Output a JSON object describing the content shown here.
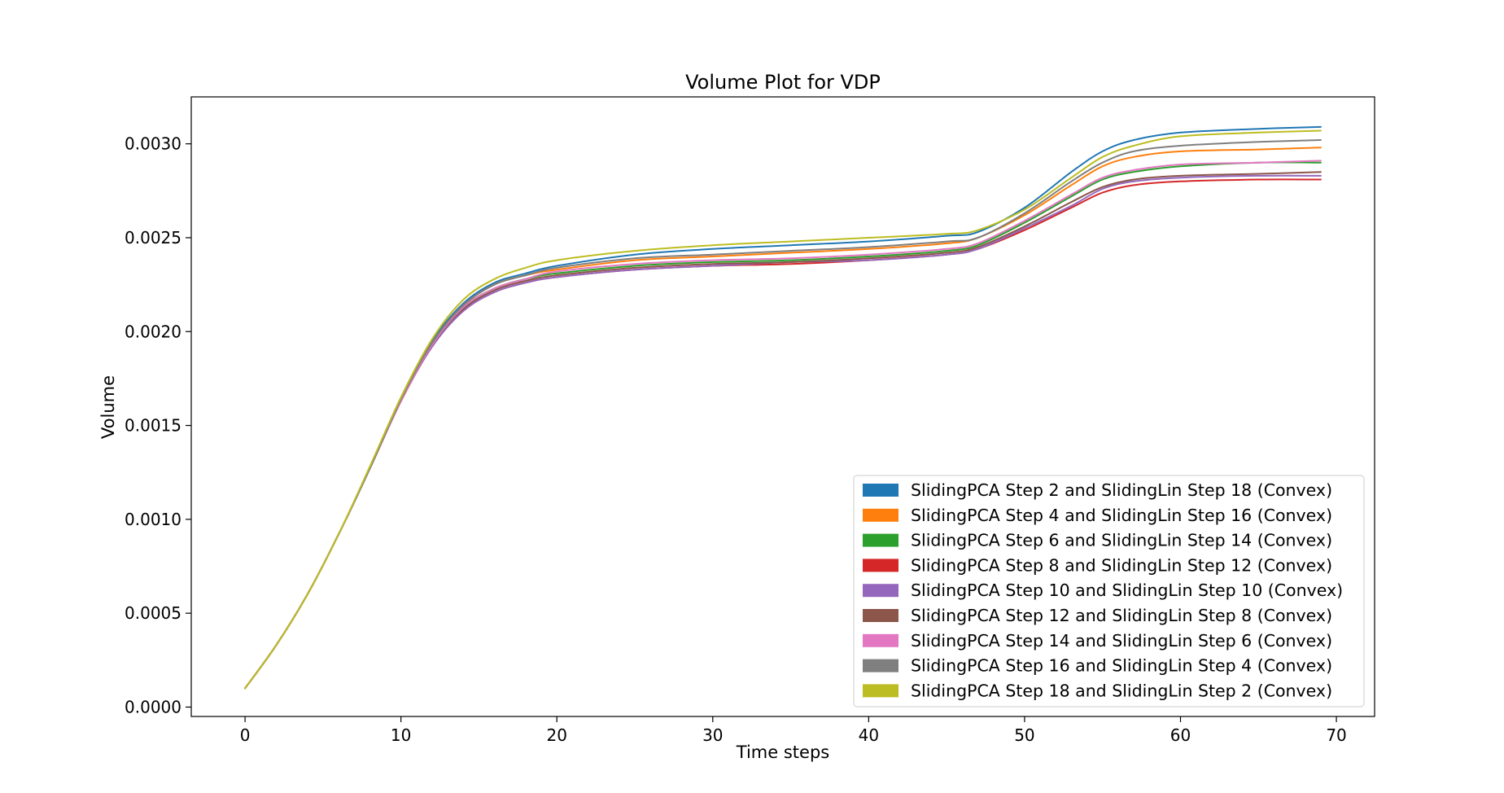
{
  "chart_data": {
    "type": "line",
    "title": "Volume Plot for VDP",
    "xlabel": "Time steps",
    "ylabel": "Volume",
    "xlim": [
      -3.45,
      72.45
    ],
    "ylim": [
      -5e-05,
      0.00325
    ],
    "xticks": [
      0,
      10,
      20,
      30,
      40,
      50,
      60,
      70
    ],
    "xtick_labels": [
      "0",
      "10",
      "20",
      "30",
      "40",
      "50",
      "60",
      "70"
    ],
    "yticks": [
      0.0,
      0.0005,
      0.001,
      0.0015,
      0.002,
      0.0025,
      0.003
    ],
    "ytick_labels": [
      "0.0000",
      "0.0005",
      "0.0010",
      "0.0015",
      "0.0020",
      "0.0025",
      "0.0030"
    ],
    "grid": false,
    "legend_position": "lower-right",
    "x": [
      0,
      2,
      4,
      6,
      8,
      10,
      12,
      14,
      16,
      18,
      20,
      25,
      30,
      35,
      40,
      45,
      47,
      50,
      53,
      55,
      57,
      60,
      65,
      69
    ],
    "series": [
      {
        "name": "SlidingPCA Step 2 and SlidingLin Step 18 (Convex)",
        "color": "#1f77b4",
        "values": [
          0.0001,
          0.00033,
          0.0006,
          0.00092,
          0.00127,
          0.00164,
          0.00195,
          0.00215,
          0.00226,
          0.00231,
          0.00235,
          0.00241,
          0.00244,
          0.00246,
          0.00248,
          0.00251,
          0.00253,
          0.00266,
          0.00285,
          0.00296,
          0.00302,
          0.00306,
          0.00308,
          0.00309
        ]
      },
      {
        "name": "SlidingPCA Step 4 and SlidingLin Step 16 (Convex)",
        "color": "#ff7f0e",
        "values": [
          0.0001,
          0.00033,
          0.0006,
          0.00092,
          0.00127,
          0.00164,
          0.00194,
          0.00214,
          0.00225,
          0.0023,
          0.00233,
          0.00238,
          0.0024,
          0.00242,
          0.00244,
          0.00247,
          0.0025,
          0.00262,
          0.00278,
          0.00288,
          0.00293,
          0.00296,
          0.00297,
          0.00298
        ]
      },
      {
        "name": "SlidingPCA Step 6 and SlidingLin Step 14 (Convex)",
        "color": "#2ca02c",
        "values": [
          0.0001,
          0.00033,
          0.0006,
          0.00092,
          0.00127,
          0.00163,
          0.00193,
          0.00213,
          0.00223,
          0.00228,
          0.00231,
          0.00235,
          0.00237,
          0.00238,
          0.0024,
          0.00243,
          0.00246,
          0.00258,
          0.00272,
          0.00281,
          0.00285,
          0.00288,
          0.0029,
          0.0029
        ]
      },
      {
        "name": "SlidingPCA Step 8 and SlidingLin Step 12 (Convex)",
        "color": "#d62728",
        "values": [
          0.0001,
          0.00033,
          0.0006,
          0.00092,
          0.00127,
          0.00163,
          0.00192,
          0.00211,
          0.00221,
          0.00226,
          0.00229,
          0.00233,
          0.00235,
          0.00236,
          0.00238,
          0.00241,
          0.00244,
          0.00254,
          0.00266,
          0.00274,
          0.00278,
          0.0028,
          0.00281,
          0.00281
        ]
      },
      {
        "name": "SlidingPCA Step 10 and SlidingLin Step 10 (Convex)",
        "color": "#9467bd",
        "values": [
          0.0001,
          0.00033,
          0.0006,
          0.00092,
          0.00127,
          0.00163,
          0.00192,
          0.00211,
          0.00221,
          0.00226,
          0.00229,
          0.00233,
          0.00235,
          0.00237,
          0.00238,
          0.00241,
          0.00244,
          0.00255,
          0.00267,
          0.00276,
          0.0028,
          0.00282,
          0.00283,
          0.00283
        ]
      },
      {
        "name": "SlidingPCA Step 12 and SlidingLin Step 8 (Convex)",
        "color": "#8c564b",
        "values": [
          0.0001,
          0.00033,
          0.0006,
          0.00092,
          0.00127,
          0.00163,
          0.00193,
          0.00212,
          0.00222,
          0.00227,
          0.0023,
          0.00234,
          0.00236,
          0.00237,
          0.00239,
          0.00242,
          0.00245,
          0.00256,
          0.00269,
          0.00277,
          0.00281,
          0.00283,
          0.00284,
          0.00285
        ]
      },
      {
        "name": "SlidingPCA Step 14 and SlidingLin Step 6 (Convex)",
        "color": "#e377c2",
        "values": [
          0.0001,
          0.00033,
          0.0006,
          0.00092,
          0.00127,
          0.00163,
          0.00193,
          0.00213,
          0.00223,
          0.00228,
          0.00232,
          0.00236,
          0.00238,
          0.00239,
          0.00241,
          0.00244,
          0.00247,
          0.00259,
          0.00273,
          0.00282,
          0.00286,
          0.00289,
          0.0029,
          0.00291
        ]
      },
      {
        "name": "SlidingPCA Step 16 and SlidingLin Step 4 (Convex)",
        "color": "#7f7f7f",
        "values": [
          0.0001,
          0.00033,
          0.0006,
          0.00092,
          0.00127,
          0.00164,
          0.00194,
          0.00214,
          0.00225,
          0.0023,
          0.00234,
          0.00239,
          0.00241,
          0.00243,
          0.00245,
          0.00248,
          0.0025,
          0.00263,
          0.0028,
          0.0029,
          0.00296,
          0.00299,
          0.00301,
          0.00302
        ]
      },
      {
        "name": "SlidingPCA Step 18 and SlidingLin Step 2 (Convex)",
        "color": "#bcbd22",
        "values": [
          0.0001,
          0.00033,
          0.0006,
          0.00092,
          0.00128,
          0.00165,
          0.00196,
          0.00217,
          0.00228,
          0.00234,
          0.00238,
          0.00243,
          0.00246,
          0.00248,
          0.0025,
          0.00252,
          0.00254,
          0.00265,
          0.00282,
          0.00293,
          0.00299,
          0.00304,
          0.00306,
          0.00307
        ]
      }
    ]
  }
}
